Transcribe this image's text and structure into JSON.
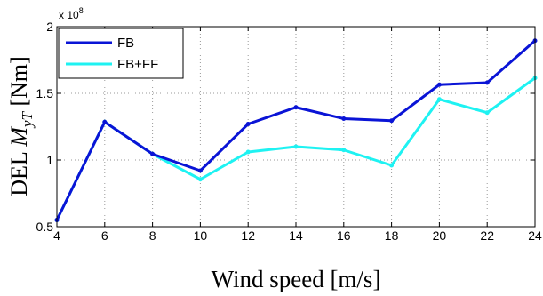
{
  "chart_data": {
    "type": "line",
    "title": "",
    "xlabel": "Wind speed [m/s]",
    "ylabel": {
      "prefix": "DEL ",
      "symbol": "M",
      "subscript": "yT",
      "unit": " [Nm]"
    },
    "y_multiplier": {
      "base": "x 10",
      "exponent": "8"
    },
    "xlim": [
      4,
      24
    ],
    "ylim": [
      0.5,
      2
    ],
    "xticks": [
      4,
      6,
      8,
      10,
      12,
      14,
      16,
      18,
      20,
      22,
      24
    ],
    "yticks": [
      0.5,
      1,
      1.5,
      2
    ],
    "ytick_labels": [
      "0.5",
      "1",
      "1.5",
      "2"
    ],
    "grid": true,
    "legend_position": "top-left",
    "x": [
      4,
      6,
      8,
      10,
      12,
      14,
      16,
      18,
      20,
      22,
      24
    ],
    "series": [
      {
        "name": "FB",
        "color": "#0a14d6",
        "values": [
          0.55,
          1.285,
          1.045,
          0.92,
          1.27,
          1.395,
          1.31,
          1.295,
          1.565,
          1.58,
          1.895
        ]
      },
      {
        "name": "FB+FF",
        "color": "#1ef2f2",
        "values": [
          0.55,
          1.285,
          1.045,
          0.855,
          1.06,
          1.1,
          1.075,
          0.96,
          1.455,
          1.355,
          1.615
        ]
      }
    ]
  }
}
